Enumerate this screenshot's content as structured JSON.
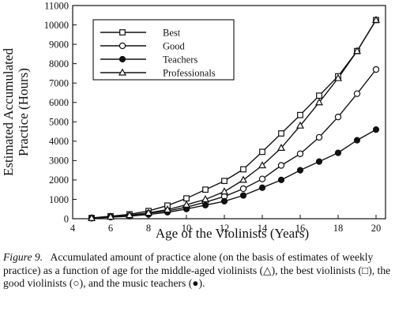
{
  "chart_data": {
    "type": "line",
    "xlabel": "Age of the Violinists (Years)",
    "ylabel": "Estimated Accumulated Practice (Hours)",
    "ylabel_lines": [
      "Estimated Accumulated",
      "Practice (Hours)"
    ],
    "xlim": [
      4,
      20.5
    ],
    "ylim": [
      0,
      11000
    ],
    "x_ticks": [
      4,
      6,
      8,
      10,
      12,
      14,
      16,
      18,
      20
    ],
    "y_ticks": [
      0,
      1000,
      2000,
      3000,
      4000,
      5000,
      6000,
      7000,
      8000,
      9000,
      10000,
      11000
    ],
    "grid": false,
    "legend_position": "top-left",
    "series": [
      {
        "name": "Best",
        "marker": "square-open",
        "x": [
          5,
          6,
          7,
          8,
          9,
          10,
          11,
          12,
          13,
          14,
          15,
          16,
          17,
          18,
          19,
          20
        ],
        "values": [
          40,
          130,
          230,
          400,
          680,
          1050,
          1500,
          1950,
          2550,
          3450,
          4400,
          5350,
          6350,
          7350,
          8650,
          10250
        ]
      },
      {
        "name": "Good",
        "marker": "circle-open",
        "x": [
          5,
          6,
          7,
          8,
          9,
          10,
          11,
          12,
          13,
          14,
          15,
          16,
          17,
          18,
          19,
          20
        ],
        "values": [
          30,
          90,
          160,
          280,
          400,
          600,
          850,
          1150,
          1550,
          2050,
          2750,
          3350,
          4200,
          5250,
          6450,
          7700
        ]
      },
      {
        "name": "Teachers",
        "marker": "circle-filled",
        "x": [
          5,
          6,
          7,
          8,
          9,
          10,
          11,
          12,
          13,
          14,
          15,
          16,
          17,
          18,
          19,
          20
        ],
        "values": [
          25,
          80,
          130,
          220,
          330,
          500,
          700,
          900,
          1200,
          1600,
          2000,
          2500,
          2950,
          3400,
          4050,
          4600
        ]
      },
      {
        "name": "Professionals",
        "marker": "triangle-open",
        "x": [
          5,
          6,
          7,
          8,
          9,
          10,
          11,
          12,
          13,
          14,
          15,
          16,
          17,
          18,
          19,
          20
        ],
        "values": [
          30,
          100,
          180,
          300,
          470,
          720,
          1000,
          1400,
          2000,
          2750,
          3650,
          4800,
          6000,
          7250,
          8650,
          10250
        ]
      }
    ]
  },
  "caption": {
    "lead": "Figure 9.",
    "text": "Accumulated amount of practice alone (on the basis of estimates of weekly practice) as a function of age for the middle-aged violinists (△), the best violinists (□), the good violinists (○), and the music teachers (●)."
  }
}
